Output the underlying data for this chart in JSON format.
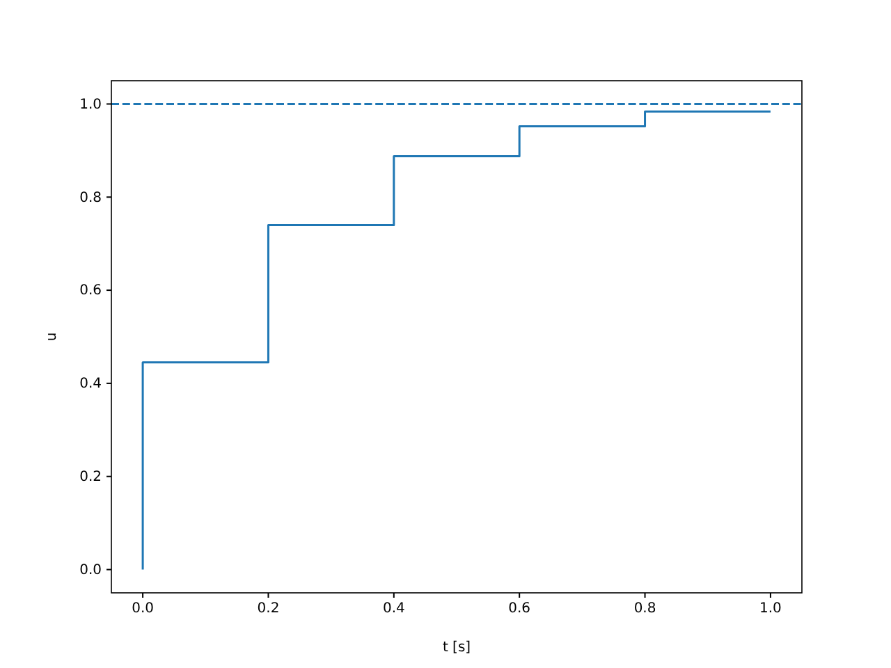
{
  "chart_data": {
    "type": "step",
    "xlabel": "t [s]",
    "ylabel": "u",
    "x": [
      0,
      0,
      0.2,
      0.4,
      0.6,
      0.8,
      1.0
    ],
    "series": [
      {
        "color": "#1f77b4",
        "values": [
          0,
          0.445,
          0.74,
          0.888,
          0.952,
          0.984,
          0.984
        ]
      }
    ],
    "xlim": [
      -0.05,
      1.05
    ],
    "xticks": [
      {
        "value": 0,
        "label": "0.0"
      },
      {
        "value": 0.2,
        "label": "0.2"
      },
      {
        "value": 0.4,
        "label": "0.4"
      },
      {
        "value": 0.6,
        "label": "0.6"
      },
      {
        "value": 0.8,
        "label": "0.8"
      },
      {
        "value": 1,
        "label": "1.0"
      }
    ],
    "ylim": [
      -0.05,
      1.05
    ],
    "yticks": [
      {
        "value": 0,
        "label": "0.0"
      },
      {
        "value": 0.2,
        "label": "0.2"
      },
      {
        "value": 0.4,
        "label": "0.4"
      },
      {
        "value": 0.6,
        "label": "0.6"
      },
      {
        "value": 0.8,
        "label": "0.8"
      },
      {
        "value": 1,
        "label": "1.0"
      }
    ],
    "ref_lines": [
      {
        "axis": "y",
        "value": 1,
        "color": "#1f77b4",
        "line_style": "dashed"
      }
    ],
    "grid": false
  }
}
